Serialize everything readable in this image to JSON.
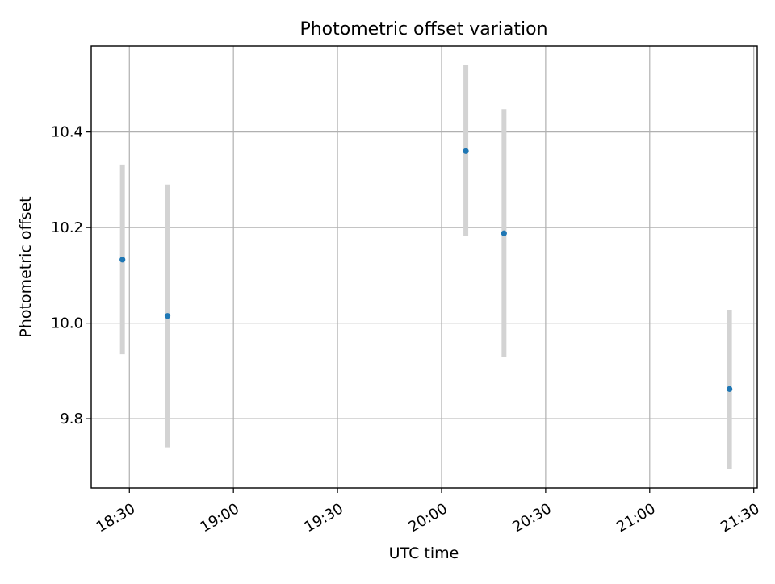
{
  "chart_data": {
    "type": "scatter",
    "title": "Photometric offset variation",
    "xlabel": "UTC time",
    "ylabel": "Photometric offset",
    "x_tick_labels": [
      "18:30",
      "19:00",
      "19:30",
      "20:00",
      "20:30",
      "21:00",
      "21:30"
    ],
    "y_tick_labels": [
      "9.8",
      "10.0",
      "10.2",
      "10.4"
    ],
    "x_ticks": [
      "18:30",
      "19:00",
      "19:30",
      "20:00",
      "20:30",
      "21:00",
      "21:30"
    ],
    "y_ticks": [
      9.8,
      10.0,
      10.2,
      10.4
    ],
    "xlim": [
      "18:19",
      "21:31"
    ],
    "ylim": [
      9.655,
      10.58
    ],
    "grid": true,
    "series": [
      {
        "x": [
          "18:28",
          "18:41",
          "20:07",
          "20:18",
          "21:23"
        ],
        "y": [
          10.133,
          10.015,
          10.36,
          10.188,
          9.862
        ],
        "yerr_low": [
          9.935,
          9.74,
          10.182,
          9.93,
          9.695
        ],
        "yerr_high": [
          10.332,
          10.29,
          10.54,
          10.448,
          10.028
        ]
      }
    ],
    "colors": {
      "point": "#1f77b4",
      "errorbar": "#d3d3d3",
      "grid": "#b0b0b0"
    }
  }
}
